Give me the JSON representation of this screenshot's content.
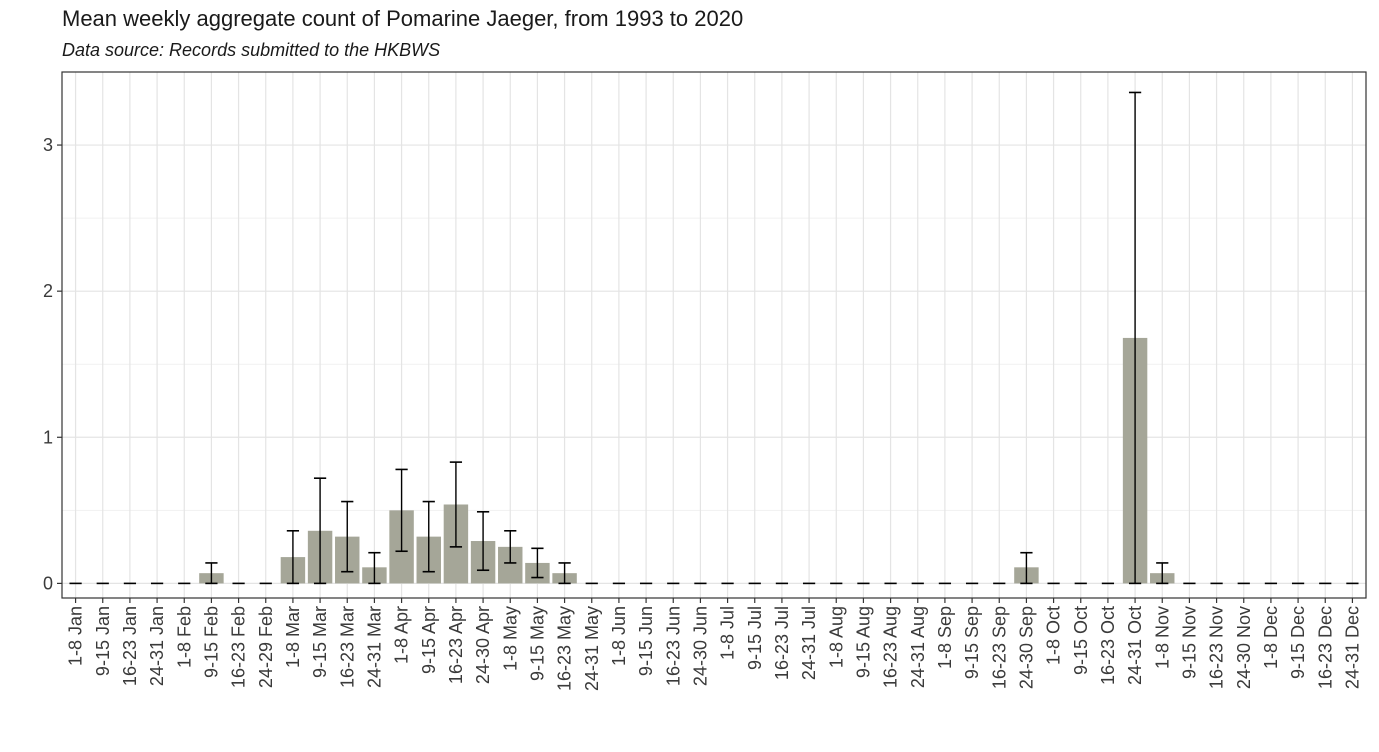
{
  "chart_data": {
    "type": "bar",
    "title": "Mean weekly aggregate count of Pomarine Jaeger, from 1993 to 2020",
    "subtitle": "Data source: Records submitted to the HKBWS",
    "xlabel": "",
    "ylabel": "",
    "ylim": [
      -0.1,
      3.5
    ],
    "yticks": [
      0,
      1,
      2,
      3
    ],
    "grid": true,
    "bar_color": "#a5a698",
    "errorbar_color": "#000000",
    "categories": [
      "1-8 Jan",
      "9-15 Jan",
      "16-23 Jan",
      "24-31 Jan",
      "1-8 Feb",
      "9-15 Feb",
      "16-23 Feb",
      "24-29 Feb",
      "1-8 Mar",
      "9-15 Mar",
      "16-23 Mar",
      "24-31 Mar",
      "1-8 Apr",
      "9-15 Apr",
      "16-23 Apr",
      "24-30 Apr",
      "1-8 May",
      "9-15 May",
      "16-23 May",
      "24-31 May",
      "1-8 Jun",
      "9-15 Jun",
      "16-23 Jun",
      "24-30 Jun",
      "1-8 Jul",
      "9-15 Jul",
      "16-23 Jul",
      "24-31 Jul",
      "1-8 Aug",
      "9-15 Aug",
      "16-23 Aug",
      "24-31 Aug",
      "1-8 Sep",
      "9-15 Sep",
      "16-23 Sep",
      "24-30 Sep",
      "1-8 Oct",
      "9-15 Oct",
      "16-23 Oct",
      "24-31 Oct",
      "1-8 Nov",
      "9-15 Nov",
      "16-23 Nov",
      "24-30 Nov",
      "1-8 Dec",
      "9-15 Dec",
      "16-23 Dec",
      "24-31 Dec"
    ],
    "values": [
      0,
      0,
      0,
      0,
      0,
      0.07,
      0,
      0,
      0.18,
      0.36,
      0.32,
      0.11,
      0.5,
      0.32,
      0.54,
      0.29,
      0.25,
      0.14,
      0.07,
      0,
      0,
      0,
      0,
      0,
      0,
      0,
      0,
      0,
      0,
      0,
      0,
      0,
      0,
      0,
      0,
      0.11,
      0,
      0,
      0,
      1.68,
      0.07,
      0,
      0,
      0,
      0,
      0,
      0,
      0
    ],
    "error_low": [
      0,
      0,
      0,
      0,
      0,
      0,
      0,
      0,
      0,
      0,
      0.08,
      0,
      0.22,
      0.08,
      0.25,
      0.09,
      0.14,
      0.04,
      0,
      0,
      0,
      0,
      0,
      0,
      0,
      0,
      0,
      0,
      0,
      0,
      0,
      0,
      0,
      0,
      0,
      0,
      0,
      0,
      0,
      0,
      0,
      0,
      0,
      0,
      0,
      0,
      0,
      0
    ],
    "error_high": [
      0,
      0,
      0,
      0,
      0,
      0.14,
      0,
      0,
      0.36,
      0.72,
      0.56,
      0.21,
      0.78,
      0.56,
      0.83,
      0.49,
      0.36,
      0.24,
      0.14,
      0,
      0,
      0,
      0,
      0,
      0,
      0,
      0,
      0,
      0,
      0,
      0,
      0,
      0,
      0,
      0,
      0.21,
      0,
      0,
      0,
      3.36,
      0.14,
      0,
      0,
      0,
      0,
      0,
      0,
      0
    ]
  }
}
